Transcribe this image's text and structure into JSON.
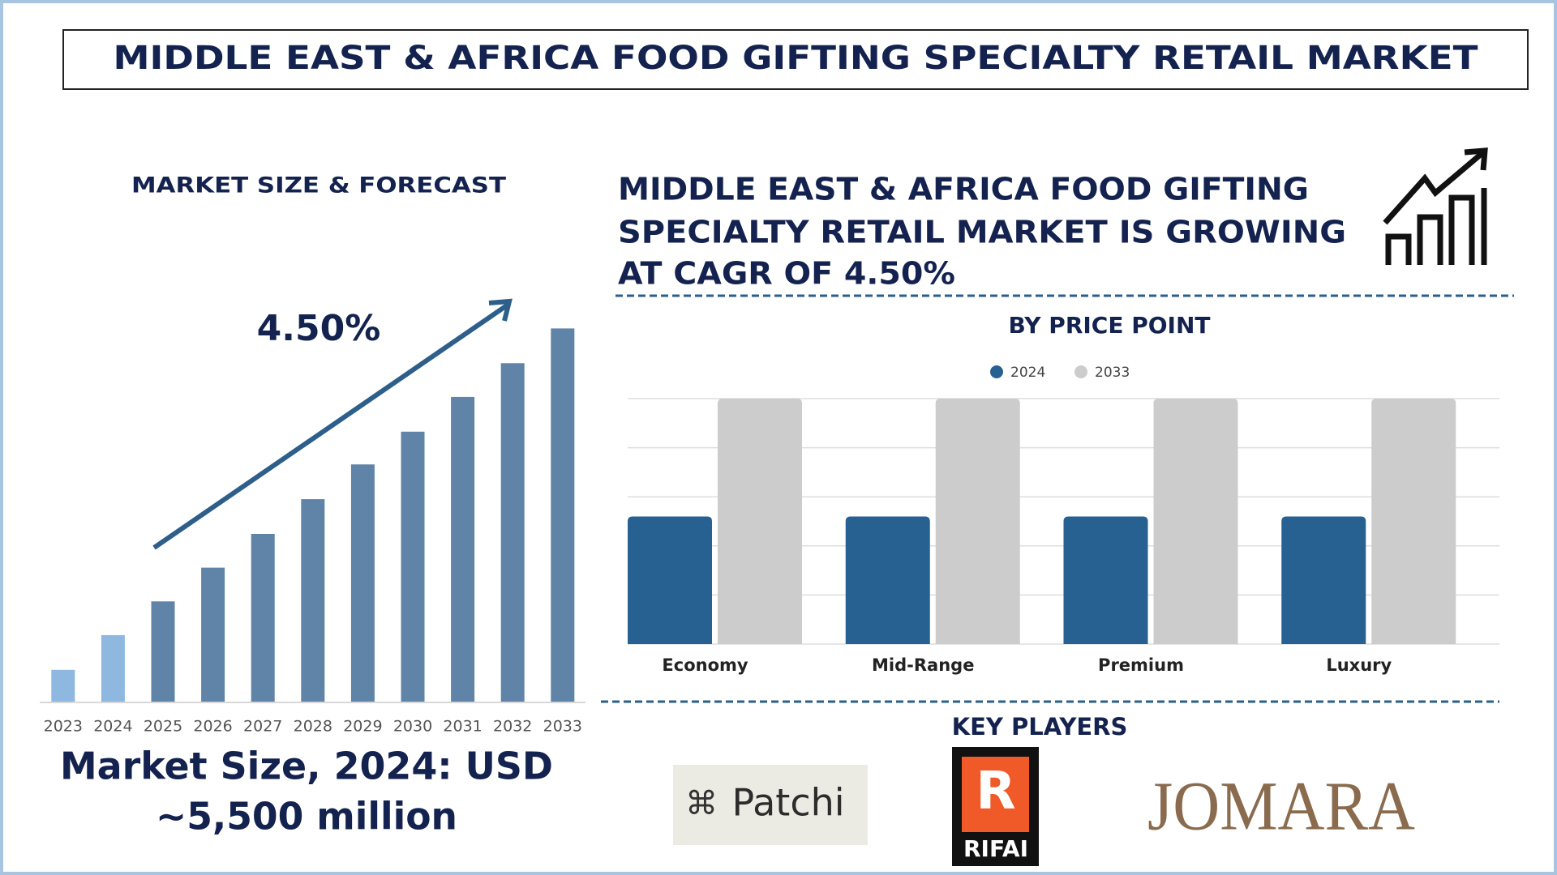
{
  "title": "MIDDLE EAST & AFRICA FOOD GIFTING SPECIALTY RETAIL MARKET",
  "chart_data": [
    {
      "type": "bar",
      "title": "MARKET SIZE & FORECAST",
      "categories": [
        "2023",
        "2024",
        "2025",
        "2026",
        "2027",
        "2028",
        "2029",
        "2030",
        "2031",
        "2032",
        "2033"
      ],
      "values": [
        32,
        67,
        101,
        135,
        169,
        204,
        239,
        272,
        307,
        341,
        376
      ],
      "colors": [
        "#8fb8e0",
        "#8fb8e0",
        "#5f84a8",
        "#5f84a8",
        "#5f84a8",
        "#5f84a8",
        "#5f84a8",
        "#5f84a8",
        "#5f84a8",
        "#5f84a8",
        "#5f84a8"
      ],
      "ylim": [
        0,
        400
      ],
      "annotation": "4.50%"
    },
    {
      "type": "grouped_bar",
      "title": "BY PRICE POINT",
      "categories": [
        "Economy",
        "Mid-Range",
        "Premium",
        "Luxury"
      ],
      "series": [
        {
          "name": "2024",
          "color": "#266191",
          "values": [
            2.6,
            2.6,
            2.6,
            2.6
          ]
        },
        {
          "name": "2033",
          "color": "#cccccc",
          "values": [
            5,
            5,
            5,
            5
          ]
        }
      ],
      "ylim": [
        0,
        5
      ],
      "yticks": [
        0,
        1,
        2,
        3,
        4,
        5
      ],
      "grid": true,
      "tick_labels": false,
      "legend": "top"
    }
  ],
  "headline": [
    "MIDDLE EAST & AFRICA FOOD GIFTING",
    "SPECIALTY RETAIL MARKET IS GROWING",
    "AT CAGR OF 4.50%"
  ],
  "market_size": [
    "Market Size, 2024: USD",
    "~5,500 million"
  ],
  "key_players": {
    "title": "KEY PLAYERS",
    "names": [
      "Patchi",
      "RIFAI",
      "JOMARA"
    ]
  }
}
